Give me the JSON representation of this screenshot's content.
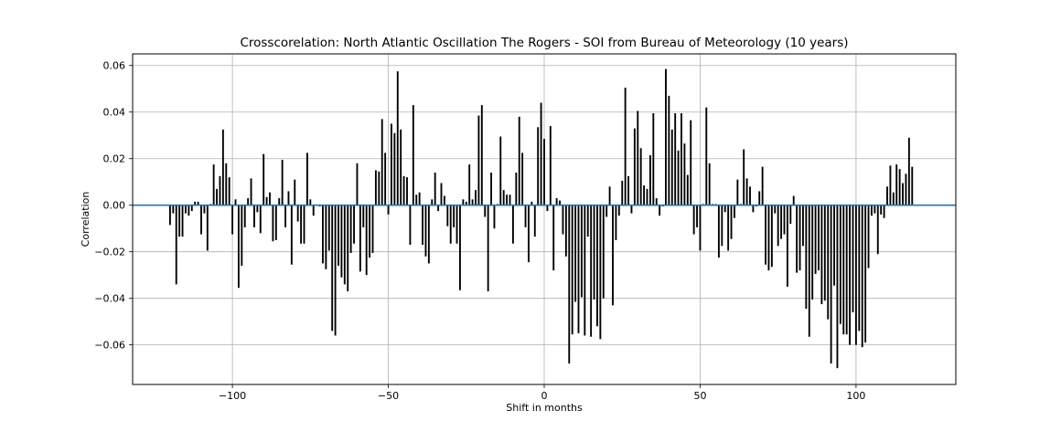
{
  "chart_data": {
    "type": "bar",
    "title": "Crosscorelation: North Atlantic Oscillation The Rogers - SOI from Bureau of Meteorology (10 years)",
    "xlabel": "Shift in months",
    "ylabel": "Correlation",
    "xlim": [
      -132,
      132
    ],
    "ylim": [
      -0.077,
      0.065
    ],
    "xticks": [
      -100,
      -50,
      0,
      50,
      100
    ],
    "xtick_labels": [
      "−100",
      "−50",
      "0",
      "50",
      "100"
    ],
    "yticks": [
      -0.06,
      -0.04,
      -0.02,
      0.0,
      0.02,
      0.04,
      0.06
    ],
    "ytick_labels": [
      "−0.06",
      "−0.04",
      "−0.02",
      "0.00",
      "0.02",
      "0.04",
      "0.06"
    ],
    "grid": true,
    "bar_color": "#000000",
    "zero_line_color": "#1f77b4",
    "x_start": -120,
    "x_step": 1,
    "values": [
      -0.0085,
      -0.0035,
      -0.034,
      -0.0135,
      -0.0135,
      -0.0035,
      -0.0045,
      -0.0025,
      0.0015,
      0.0015,
      -0.0125,
      -0.0035,
      -0.0195,
      0.0005,
      0.0175,
      0.007,
      0.0125,
      0.0325,
      0.018,
      0.012,
      -0.0125,
      0.0025,
      -0.0355,
      -0.026,
      -0.0095,
      0.003,
      0.0115,
      -0.0095,
      -0.003,
      -0.012,
      0.022,
      0.0035,
      0.0055,
      -0.0155,
      -0.015,
      0.003,
      0.0195,
      -0.0095,
      0.006,
      -0.0255,
      0.011,
      -0.007,
      -0.0165,
      -0.0165,
      0.0225,
      0.0025,
      -0.0045,
      0.0,
      -0.0005,
      -0.025,
      -0.0275,
      -0.0195,
      -0.054,
      -0.056,
      -0.026,
      -0.031,
      -0.034,
      -0.037,
      -0.0205,
      -0.0165,
      0.018,
      -0.0285,
      -0.0095,
      -0.03,
      -0.0225,
      -0.0205,
      0.015,
      0.0145,
      0.037,
      0.0225,
      -0.004,
      0.035,
      0.031,
      0.0575,
      0.0325,
      0.0125,
      0.012,
      -0.017,
      0.043,
      0.0045,
      0.0055,
      -0.017,
      -0.022,
      -0.025,
      0.0025,
      0.014,
      -0.0025,
      0.0095,
      0.004,
      -0.009,
      -0.0165,
      -0.0095,
      -0.0165,
      -0.0365,
      0.0025,
      0.0015,
      0.0175,
      0.0025,
      0.0065,
      0.0385,
      0.043,
      -0.005,
      -0.037,
      0.014,
      -0.01,
      0.0005,
      0.0295,
      0.0065,
      0.0045,
      0.0045,
      -0.0165,
      0.014,
      0.038,
      0.0225,
      -0.0095,
      -0.0245,
      0.0015,
      -0.0135,
      0.0335,
      0.044,
      0.0285,
      -0.0025,
      0.034,
      -0.028,
      0.003,
      0.002,
      -0.0125,
      -0.022,
      -0.068,
      -0.0555,
      -0.0415,
      -0.055,
      -0.0395,
      -0.056,
      -0.0135,
      -0.0565,
      -0.0405,
      -0.052,
      -0.0575,
      -0.04,
      -0.005,
      0.008,
      -0.043,
      -0.015,
      -0.0045,
      0.0105,
      0.0505,
      0.0125,
      -0.0035,
      0.033,
      0.0405,
      0.0245,
      0.0085,
      0.007,
      0.0215,
      0.0395,
      0.003,
      -0.0045,
      -0.0005,
      0.0585,
      0.047,
      0.0325,
      0.0395,
      0.0235,
      0.0395,
      0.0265,
      0.013,
      0.0365,
      -0.0125,
      -0.0095,
      -0.0195,
      0.0005,
      0.042,
      0.018,
      0.0005,
      0.0005,
      -0.0225,
      -0.0175,
      -0.003,
      -0.0195,
      -0.0145,
      -0.0055,
      0.011,
      0.0005,
      0.024,
      0.0115,
      0.008,
      -0.003,
      -0.0005,
      0.006,
      0.0165,
      -0.0255,
      -0.028,
      -0.0265,
      -0.0035,
      -0.0175,
      -0.0145,
      -0.0125,
      -0.035,
      -0.008,
      0.004,
      -0.029,
      -0.028,
      -0.0175,
      -0.0445,
      -0.0565,
      -0.0405,
      -0.0295,
      -0.028,
      -0.0425,
      -0.041,
      -0.049,
      -0.068,
      -0.0345,
      -0.07,
      -0.051,
      -0.0555,
      -0.0555,
      -0.06,
      -0.046,
      -0.06,
      -0.054,
      -0.061,
      -0.059,
      -0.027,
      -0.0045,
      -0.0035,
      -0.021,
      -0.004,
      -0.0055,
      0.008,
      0.017,
      0.0055,
      0.0175,
      0.0155,
      0.0095,
      0.0135,
      0.029,
      0.0165
    ]
  }
}
